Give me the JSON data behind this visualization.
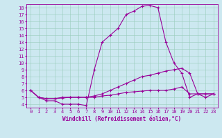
{
  "xlabel": "Windchill (Refroidissement éolien,°C)",
  "bg_color": "#cce8f0",
  "grid_color": "#99ccbb",
  "line_color": "#990099",
  "xlim": [
    -0.5,
    23.5
  ],
  "ylim": [
    3.5,
    18.5
  ],
  "yticks": [
    4,
    5,
    6,
    7,
    8,
    9,
    10,
    11,
    12,
    13,
    14,
    15,
    16,
    17,
    18
  ],
  "xticks": [
    0,
    1,
    2,
    3,
    4,
    5,
    6,
    7,
    8,
    9,
    10,
    11,
    12,
    13,
    14,
    15,
    16,
    17,
    18,
    19,
    20,
    21,
    22,
    23
  ],
  "series": [
    [
      6.0,
      5.0,
      4.5,
      4.5,
      4.0,
      4.0,
      4.0,
      3.8,
      9.0,
      13.0,
      14.0,
      15.0,
      17.0,
      17.5,
      18.2,
      18.3,
      18.0,
      13.0,
      10.0,
      8.5,
      5.0,
      5.5,
      5.0,
      5.5
    ],
    [
      6.0,
      5.0,
      4.8,
      4.8,
      5.0,
      5.0,
      5.0,
      5.0,
      5.2,
      5.5,
      6.0,
      6.5,
      7.0,
      7.5,
      8.0,
      8.2,
      8.5,
      8.8,
      9.0,
      9.2,
      8.5,
      5.5,
      5.5,
      5.5
    ],
    [
      6.0,
      5.0,
      4.8,
      4.8,
      4.9,
      5.0,
      5.0,
      5.0,
      5.0,
      5.2,
      5.3,
      5.5,
      5.7,
      5.8,
      5.9,
      6.0,
      6.0,
      6.0,
      6.2,
      6.5,
      5.5,
      5.5,
      5.5,
      5.5
    ]
  ],
  "tick_fontsize": 5,
  "xlabel_fontsize": 5.5,
  "figsize": [
    3.2,
    2.0
  ],
  "dpi": 100
}
